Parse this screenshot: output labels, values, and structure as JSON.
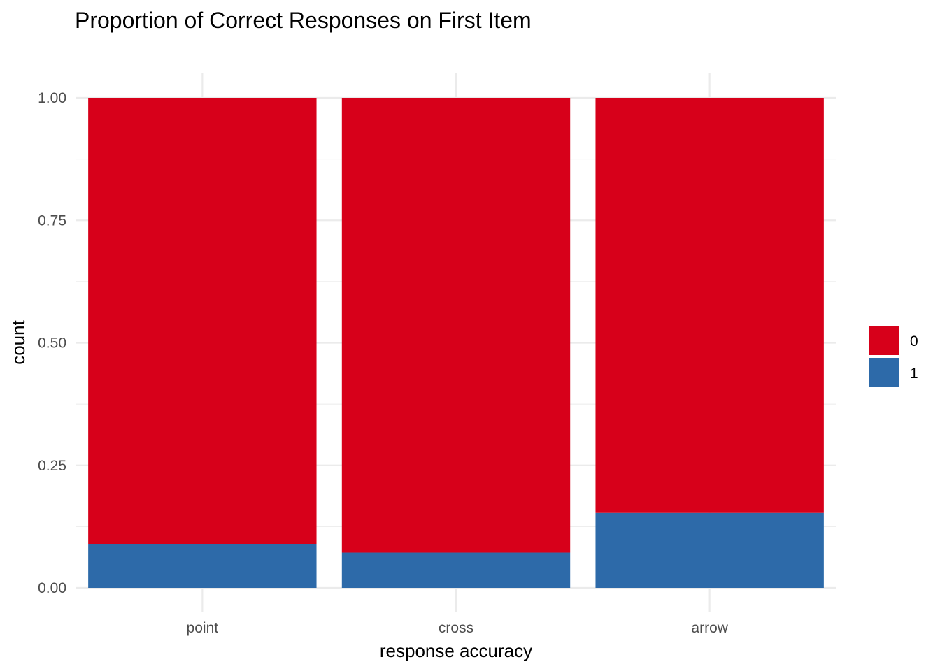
{
  "chart_data": {
    "type": "bar",
    "stacked": true,
    "title": "Proportion of Correct Responses on First Item",
    "xlabel": "response accuracy",
    "ylabel": "count",
    "categories": [
      "point",
      "cross",
      "arrow"
    ],
    "series": [
      {
        "name": "0",
        "color": "#d7001a",
        "values": [
          0.911,
          0.928,
          0.847
        ]
      },
      {
        "name": "1",
        "color": "#2d6aa9",
        "values": [
          0.089,
          0.072,
          0.153
        ]
      }
    ],
    "ylim": [
      0,
      1
    ],
    "yticks": [
      "0.00",
      "0.25",
      "0.50",
      "0.75",
      "1.00"
    ],
    "grid": true,
    "legend_position": "right"
  }
}
